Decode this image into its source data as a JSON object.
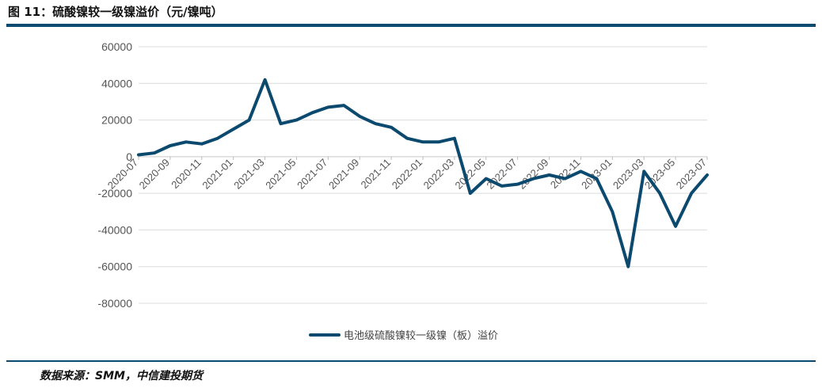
{
  "figure": {
    "title": "图 11：硫酸镍较一级镍溢价（元/镍吨）",
    "source": "数据来源：SMM，中信建投期货"
  },
  "chart_data": {
    "type": "line",
    "title": "",
    "xlabel": "",
    "ylabel": "",
    "ylim": [
      -80000,
      60000
    ],
    "yticks": [
      60000,
      40000,
      20000,
      0,
      -20000,
      -40000,
      -60000,
      -80000
    ],
    "ytick_labels": [
      "60000",
      "40000",
      "20000",
      "0",
      "-20000",
      "-40000",
      "-60000",
      "-80000"
    ],
    "xticks": [
      "2020-07",
      "2020-09",
      "2020-11",
      "2021-01",
      "2021-03",
      "2021-05",
      "2021-07",
      "2021-09",
      "2021-11",
      "2022-01",
      "2022-03",
      "2022-05",
      "2022-07",
      "2022-09",
      "2022-11",
      "2023-01",
      "2023-03",
      "2023-05",
      "2023-07"
    ],
    "grid": true,
    "legend_position": "bottom",
    "series": [
      {
        "name": "电池级硫酸镍较一级镍（板）溢价",
        "color": "#0b4a6e",
        "x": [
          "2020-07",
          "2020-08",
          "2020-09",
          "2020-10",
          "2020-11",
          "2020-12",
          "2021-01",
          "2021-02",
          "2021-03",
          "2021-04",
          "2021-05",
          "2021-06",
          "2021-07",
          "2021-08",
          "2021-09",
          "2021-10",
          "2021-11",
          "2021-12",
          "2022-01",
          "2022-02",
          "2022-03",
          "2022-04",
          "2022-05",
          "2022-06",
          "2022-07",
          "2022-08",
          "2022-09",
          "2022-10",
          "2022-11",
          "2022-12",
          "2023-01",
          "2023-02",
          "2023-03",
          "2023-04",
          "2023-05",
          "2023-06",
          "2023-07"
        ],
        "values": [
          1000,
          2000,
          6000,
          8000,
          7000,
          10000,
          15000,
          20000,
          42000,
          18000,
          20000,
          24000,
          27000,
          28000,
          22000,
          18000,
          16000,
          10000,
          8000,
          8000,
          10000,
          -20000,
          -12000,
          -16000,
          -15000,
          -12000,
          -10000,
          -12000,
          -8000,
          -12000,
          -30000,
          -60000,
          -8000,
          -20000,
          -38000,
          -20000,
          -10000
        ]
      }
    ]
  }
}
